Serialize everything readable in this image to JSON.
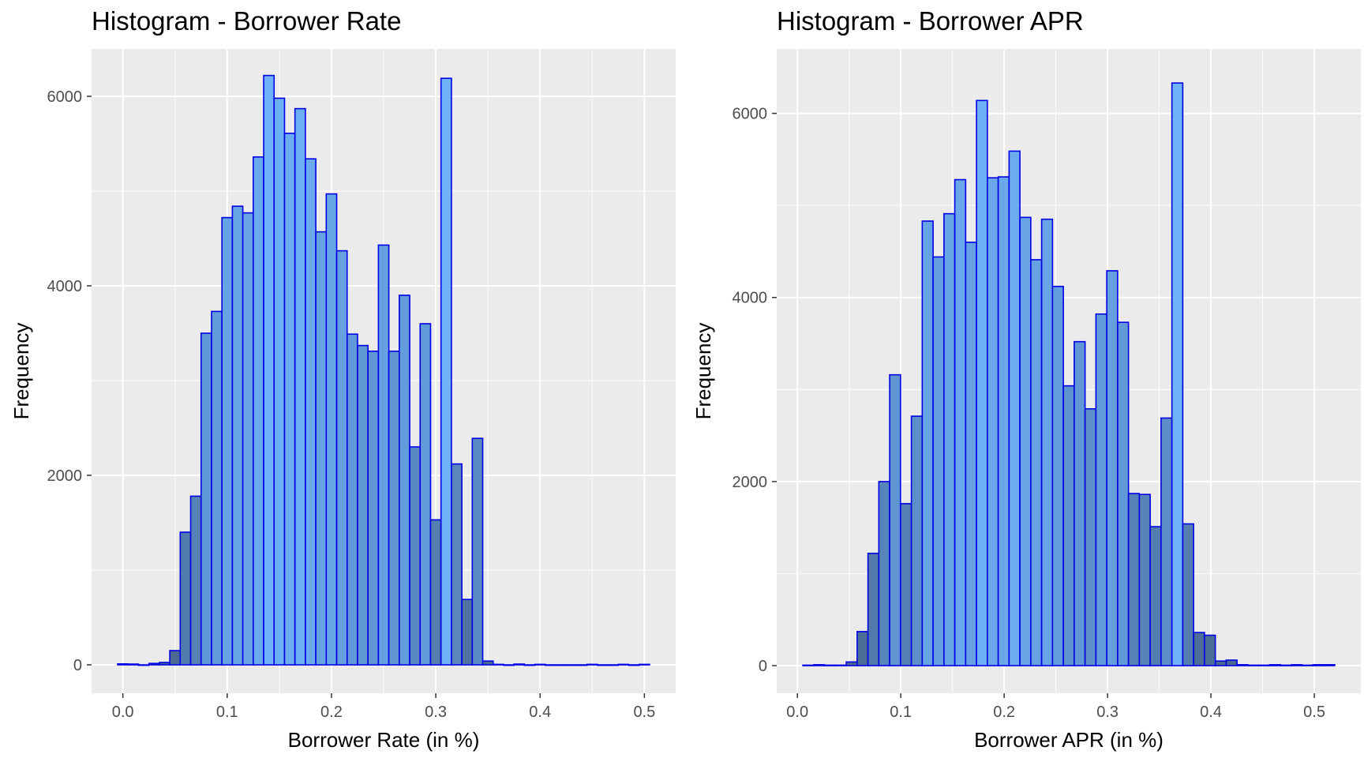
{
  "colors": {
    "panel_bg": "#ebebeb",
    "grid_major": "#ffffff",
    "bar_outline": "#0000e6",
    "fill_low": "#4a6890",
    "fill_mid": "#5f94d2",
    "fill_high": "#6fb2f7"
  },
  "chart_data": [
    {
      "type": "bar",
      "title": "Histogram - Borrower Rate",
      "xlabel": "Borrower Rate (in %)",
      "ylabel": "Frequency",
      "xlim": [
        -0.03,
        0.53
      ],
      "ylim": [
        -300,
        6500
      ],
      "xticks": [
        0.0,
        0.1,
        0.2,
        0.3,
        0.4,
        0.5
      ],
      "xtick_labels": [
        "0.0",
        "0.1",
        "0.2",
        "0.3",
        "0.4",
        "0.5"
      ],
      "yticks": [
        0,
        2000,
        4000,
        6000
      ],
      "ytick_labels": [
        "0",
        "2000",
        "4000",
        "6000"
      ],
      "grid": true,
      "bin_width": 0.01,
      "x": [
        0.0,
        0.01,
        0.02,
        0.03,
        0.04,
        0.05,
        0.06,
        0.07,
        0.08,
        0.09,
        0.1,
        0.11,
        0.12,
        0.13,
        0.14,
        0.15,
        0.16,
        0.17,
        0.18,
        0.19,
        0.2,
        0.21,
        0.22,
        0.23,
        0.24,
        0.25,
        0.26,
        0.27,
        0.28,
        0.29,
        0.3,
        0.31,
        0.32,
        0.33,
        0.34,
        0.35,
        0.36,
        0.37,
        0.38,
        0.39,
        0.4,
        0.41,
        0.42,
        0.43,
        0.44,
        0.45,
        0.46,
        0.47,
        0.48,
        0.49,
        0.5
      ],
      "values": [
        10,
        8,
        0,
        15,
        25,
        150,
        1400,
        1780,
        3500,
        3730,
        4720,
        4840,
        4770,
        5360,
        6220,
        5980,
        5610,
        5870,
        5340,
        4570,
        4970,
        4370,
        3490,
        3370,
        3310,
        4430,
        3310,
        3900,
        2300,
        3600,
        1530,
        6190,
        2120,
        690,
        2390,
        40,
        5,
        0,
        8,
        0,
        5,
        0,
        0,
        0,
        0,
        5,
        0,
        0,
        5,
        0,
        5
      ]
    },
    {
      "type": "bar",
      "title": "Histogram - Borrower APR",
      "xlabel": "Borrower APR (in %)",
      "ylabel": "Frequency",
      "xlim": [
        -0.02,
        0.545
      ],
      "ylim": [
        -300,
        6700
      ],
      "xticks": [
        0.0,
        0.1,
        0.2,
        0.3,
        0.4,
        0.5
      ],
      "xtick_labels": [
        "0.0",
        "0.1",
        "0.2",
        "0.3",
        "0.4",
        "0.5"
      ],
      "yticks": [
        0,
        2000,
        4000,
        6000
      ],
      "ytick_labels": [
        "0",
        "2000",
        "4000",
        "6000"
      ],
      "grid": true,
      "bin_width": 0.0105,
      "x": [
        0.0105,
        0.021,
        0.0315,
        0.042,
        0.0525,
        0.063,
        0.0735,
        0.084,
        0.0945,
        0.105,
        0.1155,
        0.126,
        0.1365,
        0.147,
        0.1575,
        0.168,
        0.1785,
        0.189,
        0.1995,
        0.21,
        0.2205,
        0.231,
        0.2415,
        0.252,
        0.2625,
        0.273,
        0.2835,
        0.294,
        0.3045,
        0.315,
        0.3255,
        0.336,
        0.3465,
        0.357,
        0.3675,
        0.378,
        0.3885,
        0.399,
        0.4095,
        0.42,
        0.4305,
        0.441,
        0.4515,
        0.462,
        0.4725,
        0.483,
        0.4935,
        0.504,
        0.5145
      ],
      "values": [
        5,
        10,
        5,
        5,
        40,
        370,
        1220,
        2000,
        3160,
        1760,
        2710,
        4830,
        4440,
        4910,
        5280,
        4600,
        6140,
        5300,
        5310,
        5590,
        4870,
        4410,
        4850,
        4120,
        3040,
        3520,
        2790,
        3820,
        4290,
        3730,
        1870,
        1860,
        1510,
        2690,
        6330,
        1540,
        360,
        330,
        50,
        60,
        10,
        5,
        5,
        10,
        5,
        10,
        5,
        10,
        10
      ]
    }
  ]
}
